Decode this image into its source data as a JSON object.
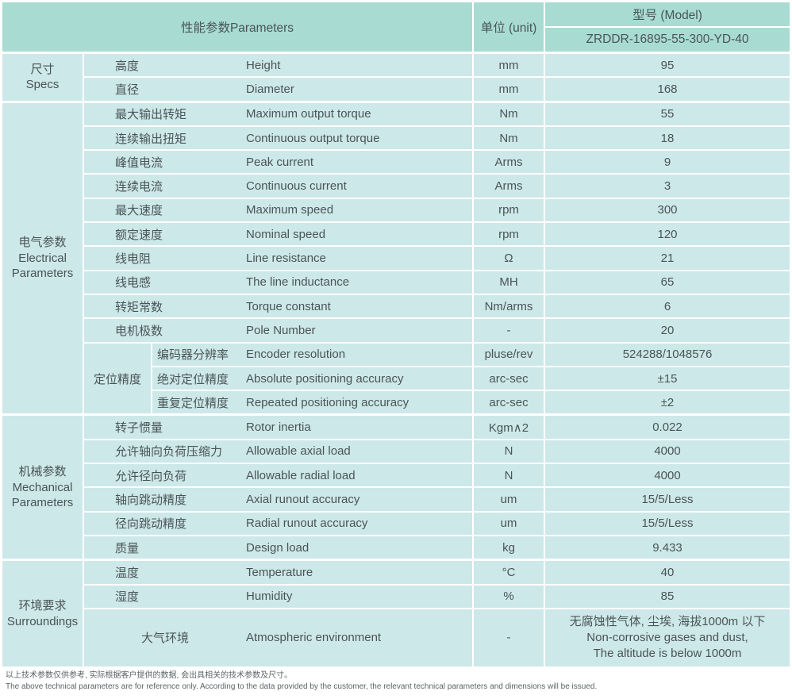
{
  "colors": {
    "header_bg": "#a8dcd2",
    "cell_bg": "#cde8e9",
    "grid_lines": "#ffffff",
    "text": "#4a5456"
  },
  "header": {
    "parameters_label": "性能参数Parameters",
    "unit_label": "单位 (unit)",
    "model_label": "型号 (Model)",
    "model_value": "ZRDDR-16895-55-300-YD-40"
  },
  "sections": [
    {
      "label_cn": "尺寸",
      "label_en": "Specs",
      "rows": [
        {
          "cn": "高度",
          "en": "Height",
          "unit": "mm",
          "value": "95"
        },
        {
          "cn": "直径",
          "en": "Diameter",
          "unit": "mm",
          "value": "168"
        }
      ]
    },
    {
      "label_cn": "电气参数",
      "label_en": "Electrical",
      "label_en2": "Parameters",
      "rows": [
        {
          "cn": "最大输出转矩",
          "en": "Maximum output torque",
          "unit": "Nm",
          "value": "55"
        },
        {
          "cn": "连续输出扭矩",
          "en": "Continuous output torque",
          "unit": "Nm",
          "value": "18"
        },
        {
          "cn": "峰值电流",
          "en": "Peak current",
          "unit": "Arms",
          "value": "9"
        },
        {
          "cn": "连续电流",
          "en": "Continuous current",
          "unit": "Arms",
          "value": "3"
        },
        {
          "cn": "最大速度",
          "en": "Maximum speed",
          "unit": "rpm",
          "value": "300"
        },
        {
          "cn": "额定速度",
          "en": "Nominal speed",
          "unit": "rpm",
          "value": "120"
        },
        {
          "cn": "线电阻",
          "en": "Line resistance",
          "unit": "Ω",
          "value": "21"
        },
        {
          "cn": "线电感",
          "en": "The line inductance",
          "unit": "MH",
          "value": "65"
        },
        {
          "cn": "转矩常数",
          "en": "Torque constant",
          "unit": "Nm/arms",
          "value": "6"
        },
        {
          "cn": "电机极数",
          "en": "Pole Number",
          "unit": "-",
          "value": "20"
        }
      ],
      "subgroup": {
        "label": "定位精度",
        "rows": [
          {
            "cn": "编码器分辨率",
            "en": "Encoder resolution",
            "unit": "pluse/rev",
            "value": "524288/1048576"
          },
          {
            "cn": "绝对定位精度",
            "en": "Absolute positioning accuracy",
            "unit": "arc-sec",
            "value": "±15"
          },
          {
            "cn": "重复定位精度",
            "en": "Repeated positioning accuracy",
            "unit": "arc-sec",
            "value": "±2"
          }
        ]
      }
    },
    {
      "label_cn": "机械参数",
      "label_en": "Mechanical",
      "label_en2": "Parameters",
      "rows": [
        {
          "cn": "转子惯量",
          "en": "Rotor inertia",
          "unit": "Kgm∧2",
          "value": "0.022"
        },
        {
          "cn": "允许轴向负荷压缩力",
          "en": "Allowable axial load",
          "unit": "N",
          "value": "4000"
        },
        {
          "cn": "允许径向负荷",
          "en": "Allowable radial load",
          "unit": "N",
          "value": "4000"
        },
        {
          "cn": "轴向跳动精度",
          "en": "Axial runout accuracy",
          "unit": "um",
          "value": "15/5/Less"
        },
        {
          "cn": "径向跳动精度",
          "en": "Radial runout accuracy",
          "unit": "um",
          "value": "15/5/Less"
        },
        {
          "cn": "质量",
          "en": "Design load",
          "unit": "kg",
          "value": "9.433"
        }
      ]
    },
    {
      "label_cn": "环境要求",
      "label_en": "Surroundings",
      "rows": [
        {
          "cn": "温度",
          "en": "Temperature",
          "unit": "°C",
          "value": "40"
        },
        {
          "cn": "湿度",
          "en": "Humidity",
          "unit": "%",
          "value": "85"
        }
      ],
      "tall_row": {
        "cn": "大气环境",
        "en": "Atmospheric environment",
        "unit": "-",
        "value_cn": "无腐蚀性气体, 尘埃, 海拔1000m 以下",
        "value_en1": "Non-corrosive gases and dust,",
        "value_en2": "The altitude is below 1000m"
      }
    }
  ],
  "footer": {
    "note_cn": "以上技术参数仅供参考, 实际根据客户提供的数据, 会出具相关的技术参数及尺寸。",
    "note_en": "The above technical parameters are for reference only. According to the data provided by the customer, the relevant technical parameters and dimensions will be issued."
  }
}
